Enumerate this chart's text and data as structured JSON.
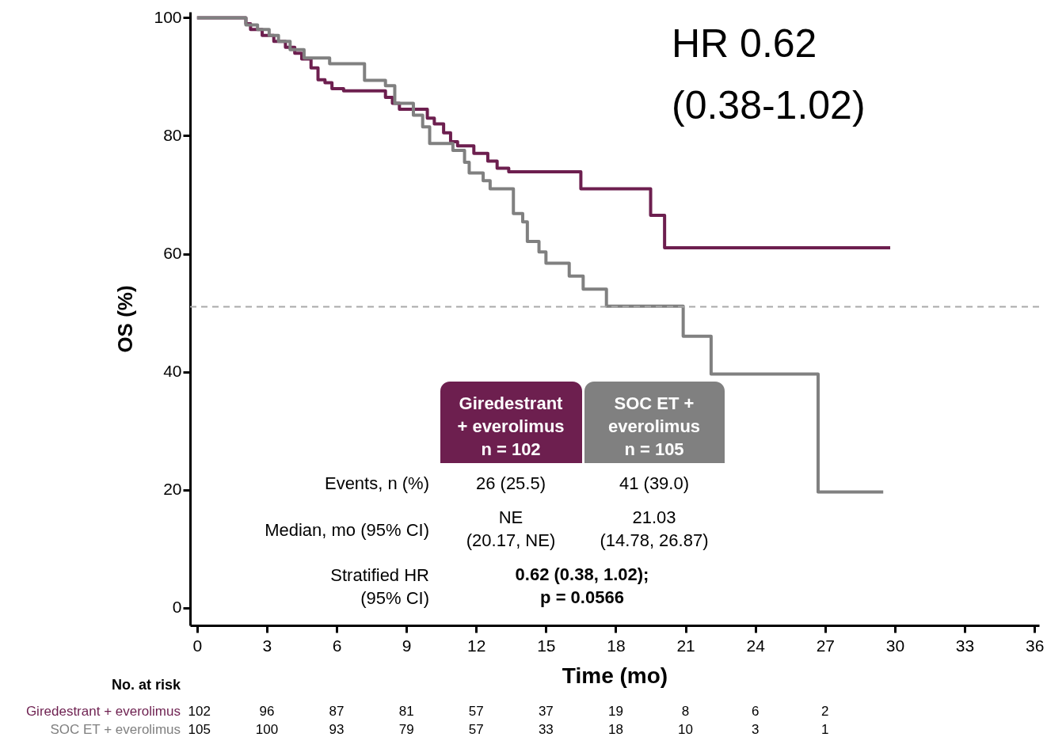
{
  "chart_data": {
    "type": "step",
    "xlabel": "Time (mo)",
    "ylabel": "OS (%)",
    "xlim": [
      -0.3,
      36.2
    ],
    "xticks": [
      0,
      3,
      6,
      9,
      12,
      15,
      18,
      21,
      24,
      27,
      30,
      33,
      36
    ],
    "ylim": [
      -3,
      101
    ],
    "yticks": [
      0,
      20,
      40,
      60,
      80,
      100
    ],
    "grid": false,
    "marker": "none",
    "line_style": "solid",
    "series": [
      {
        "name": "Giredestrant + everolimus",
        "color": "#6d1f4f",
        "x": [
          0,
          2.1,
          2.3,
          2.8,
          3.3,
          3.8,
          4.2,
          4.5,
          4.9,
          5.2,
          5.5,
          5.8,
          6.3,
          8.1,
          8.4,
          8.7,
          9.9,
          10.2,
          10.6,
          10.9,
          11.2,
          11.9,
          12.5,
          12.9,
          13.4,
          16.5,
          19.5,
          20.1,
          29.8
        ],
        "values": [
          100,
          99,
          98,
          97,
          96,
          95,
          94,
          93,
          91.5,
          89.5,
          89,
          88,
          87.6,
          86.5,
          85.5,
          84.5,
          83,
          82,
          80.5,
          79,
          78.3,
          77,
          75.7,
          74.5,
          73.9,
          71,
          66.5,
          61,
          61
        ]
      },
      {
        "name": "SOC ET + everolimus",
        "color": "#808080",
        "x": [
          0,
          2.1,
          2.6,
          3.1,
          3.5,
          4.0,
          4.6,
          5.7,
          7.2,
          8.1,
          8.5,
          9.3,
          9.7,
          10.0,
          11.0,
          11.5,
          11.7,
          12.3,
          12.6,
          13.6,
          14.0,
          14.2,
          14.7,
          15.0,
          16.0,
          16.6,
          17.6,
          20.9,
          22.1,
          26.7,
          29.5
        ],
        "values": [
          100,
          98.8,
          98,
          97,
          96,
          94.6,
          93.2,
          92.2,
          89.4,
          88.5,
          85.5,
          83.5,
          81.5,
          78.7,
          77.5,
          75.5,
          73.7,
          72.4,
          71,
          66.8,
          65.4,
          62.1,
          60.3,
          58.4,
          56.2,
          54,
          51.1,
          46,
          39.6,
          19.6,
          19.6
        ]
      }
    ],
    "ref_lines": [
      {
        "axis": "y",
        "value": 51,
        "color": "#aaaaaa",
        "line_style": "dashed"
      }
    ],
    "annotations": [
      "HR 0.62",
      "(0.38-1.02)",
      "Giredestrant\n+ everolimus\nn = 102",
      "SOC ET +\neverolimus\nn = 105",
      "Events, n (%)",
      "Median, mo (95% CI)",
      "Stratified HR\n(95% CI)",
      "26 (25.5)",
      "41 (39.0)",
      "NE\n(20.17, NE)",
      "21.03\n(14.78, 26.87)",
      "0.62 (0.38, 1.02);\np = 0.0566",
      "No. at risk",
      "102",
      "96",
      "87",
      "81",
      "57",
      "37",
      "19",
      "8",
      "6",
      "2",
      "105",
      "100",
      "93",
      "79",
      "57",
      "33",
      "18",
      "10",
      "3",
      "1"
    ]
  }
}
